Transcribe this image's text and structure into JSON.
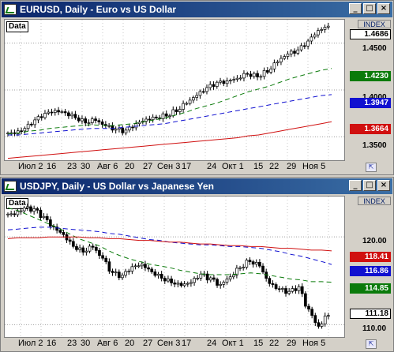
{
  "xaxis_labels": [
    "Июл 2",
    "16",
    "23",
    "30",
    "Авг 6",
    "20",
    "27",
    "Сен 3",
    "17",
    "24",
    "Окт 1",
    "15",
    "22",
    "29",
    "Ноя 5"
  ],
  "windows": [
    {
      "title": "EURUSD, Daily - Euro vs US Dollar",
      "data_label": "Data",
      "index_label": "INDEX",
      "current_price": "1.4686",
      "y_ticks": [
        "1.4500",
        "1.4000",
        "1.3500"
      ],
      "badges": [
        {
          "value": "1.4230",
          "color": "#0a7a0a"
        },
        {
          "value": "1.3947",
          "color": "#1010d0"
        },
        {
          "value": "1.3664",
          "color": "#d01010"
        }
      ],
      "chart_data": {
        "type": "line",
        "series": [
          {
            "values": [
              1.354,
              1.358,
              1.366,
              1.373,
              1.377,
              1.376,
              1.372,
              1.367,
              1.369,
              1.362,
              1.357,
              1.355,
              1.362,
              1.368,
              1.371,
              1.374,
              1.379,
              1.387,
              1.394,
              1.401,
              1.406,
              1.408,
              1.412,
              1.418,
              1.416,
              1.421,
              1.431,
              1.438,
              1.441,
              1.45,
              1.462,
              1.468
            ]
          },
          {
            "values": [
              1.353,
              1.354,
              1.356,
              1.357,
              1.359,
              1.36,
              1.361,
              1.362,
              1.363,
              1.362,
              1.362,
              1.363,
              1.364,
              1.366,
              1.368,
              1.37,
              1.373,
              1.376,
              1.38,
              1.383,
              1.386,
              1.39,
              1.394,
              1.398,
              1.401,
              1.404,
              1.408,
              1.412,
              1.415,
              1.418,
              1.421,
              1.423
            ]
          },
          {
            "values": [
              1.352,
              1.352,
              1.353,
              1.354,
              1.355,
              1.356,
              1.357,
              1.358,
              1.359,
              1.359,
              1.359,
              1.36,
              1.361,
              1.362,
              1.363,
              1.364,
              1.366,
              1.368,
              1.37,
              1.372,
              1.374,
              1.376,
              1.378,
              1.38,
              1.382,
              1.384,
              1.386,
              1.388,
              1.39,
              1.392,
              1.394,
              1.395
            ]
          },
          {
            "values": [
              1.327,
              1.328,
              1.329,
              1.33,
              1.331,
              1.332,
              1.333,
              1.334,
              1.335,
              1.336,
              1.337,
              1.338,
              1.339,
              1.34,
              1.341,
              1.342,
              1.343,
              1.344,
              1.345,
              1.346,
              1.347,
              1.348,
              1.349,
              1.351,
              1.352,
              1.354,
              1.356,
              1.358,
              1.36,
              1.362,
              1.364,
              1.366
            ]
          }
        ],
        "ylim": [
          1.325,
          1.475
        ]
      }
    },
    {
      "title": "USDJPY, Daily - US Dollar vs Japanese Yen",
      "data_label": "Data",
      "index_label": "INDEX",
      "current_price": "111.18",
      "y_ticks": [
        "120.00",
        "110.00"
      ],
      "badges": [
        {
          "value": "118.41",
          "color": "#d01010"
        },
        {
          "value": "116.86",
          "color": "#1010d0"
        },
        {
          "value": "114.85",
          "color": "#0a7a0a"
        }
      ],
      "chart_data": {
        "type": "line",
        "series": [
          {
            "values": [
              122.6,
              123.2,
              123.0,
              122.1,
              121.0,
              120.3,
              119.1,
              118.5,
              119.0,
              117.6,
              115.8,
              115.4,
              116.4,
              116.8,
              116.1,
              115.5,
              115.0,
              114.6,
              114.8,
              115.6,
              115.1,
              114.4,
              115.4,
              116.6,
              117.4,
              116.9,
              114.8,
              114.0,
              113.6,
              114.1,
              111.6,
              109.8,
              111.2
            ]
          },
          {
            "values": [
              123.3,
              123.0,
              122.5,
              122.0,
              121.5,
              121.0,
              120.4,
              119.8,
              119.4,
              119.0,
              118.4,
              117.9,
              117.5,
              117.2,
              116.9,
              116.7,
              116.5,
              116.2,
              116.0,
              115.8,
              115.7,
              115.7,
              115.7,
              115.8,
              115.9,
              115.8,
              115.6,
              115.4,
              115.2,
              115.1,
              114.9,
              114.9,
              114.85
            ]
          },
          {
            "values": [
              120.8,
              120.9,
              121.0,
              121.1,
              121.1,
              121.0,
              120.9,
              120.8,
              120.7,
              120.6,
              120.4,
              120.3,
              120.1,
              119.9,
              119.7,
              119.6,
              119.4,
              119.3,
              119.2,
              119.1,
              119.1,
              119.0,
              118.9,
              118.9,
              118.8,
              118.7,
              118.5,
              118.3,
              118.0,
              117.8,
              117.5,
              117.2,
              116.86
            ]
          },
          {
            "values": [
              119.8,
              119.9,
              119.9,
              119.9,
              120.0,
              120.0,
              120.0,
              120.0,
              119.9,
              119.9,
              119.8,
              119.8,
              119.7,
              119.6,
              119.6,
              119.5,
              119.4,
              119.4,
              119.3,
              119.2,
              119.2,
              119.1,
              119.0,
              119.0,
              118.9,
              118.9,
              118.8,
              118.7,
              118.7,
              118.6,
              118.5,
              118.5,
              118.41
            ]
          }
        ],
        "ylim": [
          108.6,
          124.6
        ]
      }
    }
  ]
}
